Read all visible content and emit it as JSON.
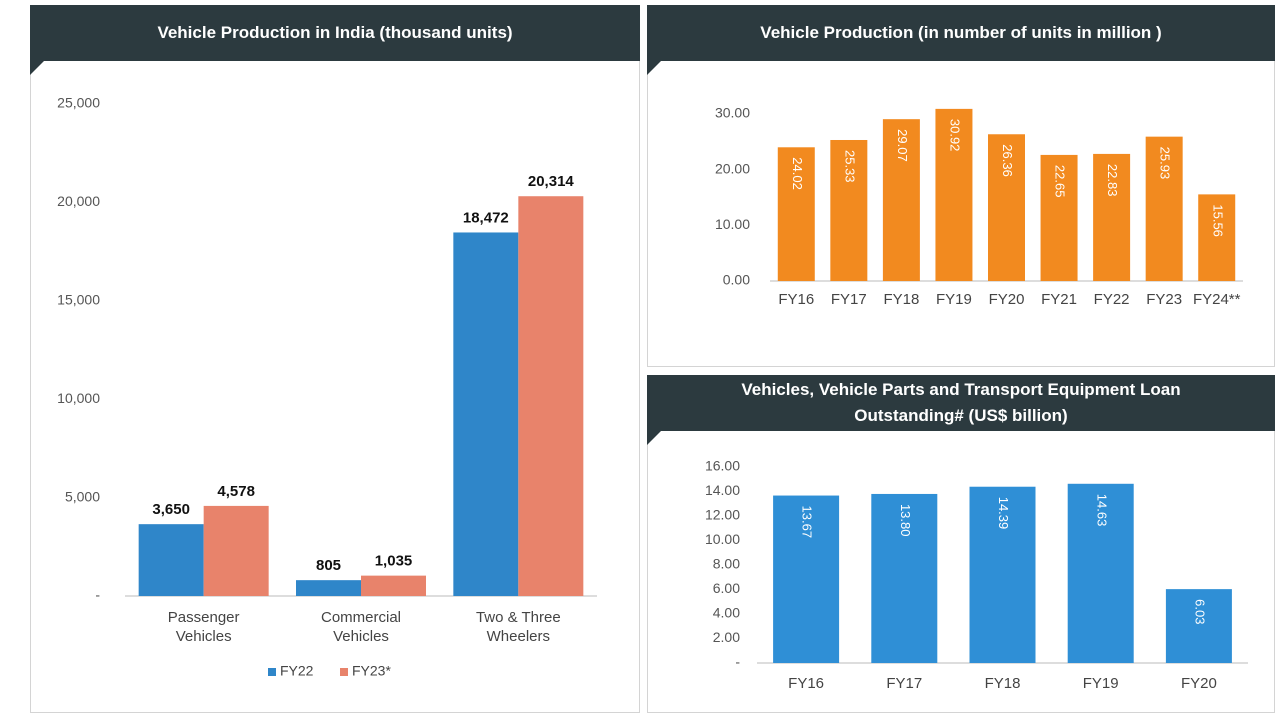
{
  "chart_data": [
    {
      "type": "bar",
      "title": "Vehicle Production in India (thousand units)",
      "categories": [
        "Passenger Vehicles",
        "Commercial Vehicles",
        "Two & Three Wheelers"
      ],
      "series": [
        {
          "name": "FY22",
          "color": "#2f86c9",
          "values": [
            3650,
            805,
            18472
          ],
          "value_labels": [
            "3,650",
            "805",
            "18,472"
          ]
        },
        {
          "name": "FY23*",
          "color": "#e8836b",
          "values": [
            4578,
            1035,
            20314
          ],
          "value_labels": [
            "4,578",
            "1,035",
            "20,314"
          ]
        }
      ],
      "ylim": [
        0,
        25000
      ],
      "yticks": [
        {
          "value": 0,
          "label": "-"
        },
        {
          "value": 5000,
          "label": "5,000"
        },
        {
          "value": 10000,
          "label": "10,000"
        },
        {
          "value": 15000,
          "label": "15,000"
        },
        {
          "value": 20000,
          "label": "20,000"
        },
        {
          "value": 25000,
          "label": "25,000"
        }
      ]
    },
    {
      "type": "bar",
      "title": "Vehicle Production (in number of units in million )",
      "categories": [
        "FY16",
        "FY17",
        "FY18",
        "FY19",
        "FY20",
        "FY21",
        "FY22",
        "FY23",
        "FY24**"
      ],
      "values": [
        24.02,
        25.33,
        29.07,
        30.92,
        26.36,
        22.65,
        22.83,
        25.93,
        15.56
      ],
      "value_labels": [
        "24.02",
        "25.33",
        "29.07",
        "30.92",
        "26.36",
        "22.65",
        "22.83",
        "25.93",
        "15.56"
      ],
      "color": "#f28a1f",
      "ylim": [
        0,
        30
      ],
      "yticks": [
        {
          "value": 0,
          "label": "0.00"
        },
        {
          "value": 10,
          "label": "10.00"
        },
        {
          "value": 20,
          "label": "20.00"
        },
        {
          "value": 30,
          "label": "30.00"
        }
      ]
    },
    {
      "type": "bar",
      "title": "Vehicles, Vehicle Parts and Transport Equipment Loan Outstanding# (US$ billion)",
      "categories": [
        "FY16",
        "FY17",
        "FY18",
        "FY19",
        "FY20"
      ],
      "values": [
        13.67,
        13.8,
        14.39,
        14.63,
        6.03
      ],
      "value_labels": [
        "13.67",
        "13.80",
        "14.39",
        "14.63",
        "6.03"
      ],
      "color": "#2f8fd6",
      "ylim": [
        0,
        16
      ],
      "yticks": [
        {
          "value": 0,
          "label": "-"
        },
        {
          "value": 2,
          "label": "2.00"
        },
        {
          "value": 4,
          "label": "4.00"
        },
        {
          "value": 6,
          "label": "6.00"
        },
        {
          "value": 8,
          "label": "8.00"
        },
        {
          "value": 10,
          "label": "10.00"
        },
        {
          "value": 12,
          "label": "12.00"
        },
        {
          "value": 14,
          "label": "14.00"
        },
        {
          "value": 16,
          "label": "16.00"
        }
      ]
    }
  ]
}
